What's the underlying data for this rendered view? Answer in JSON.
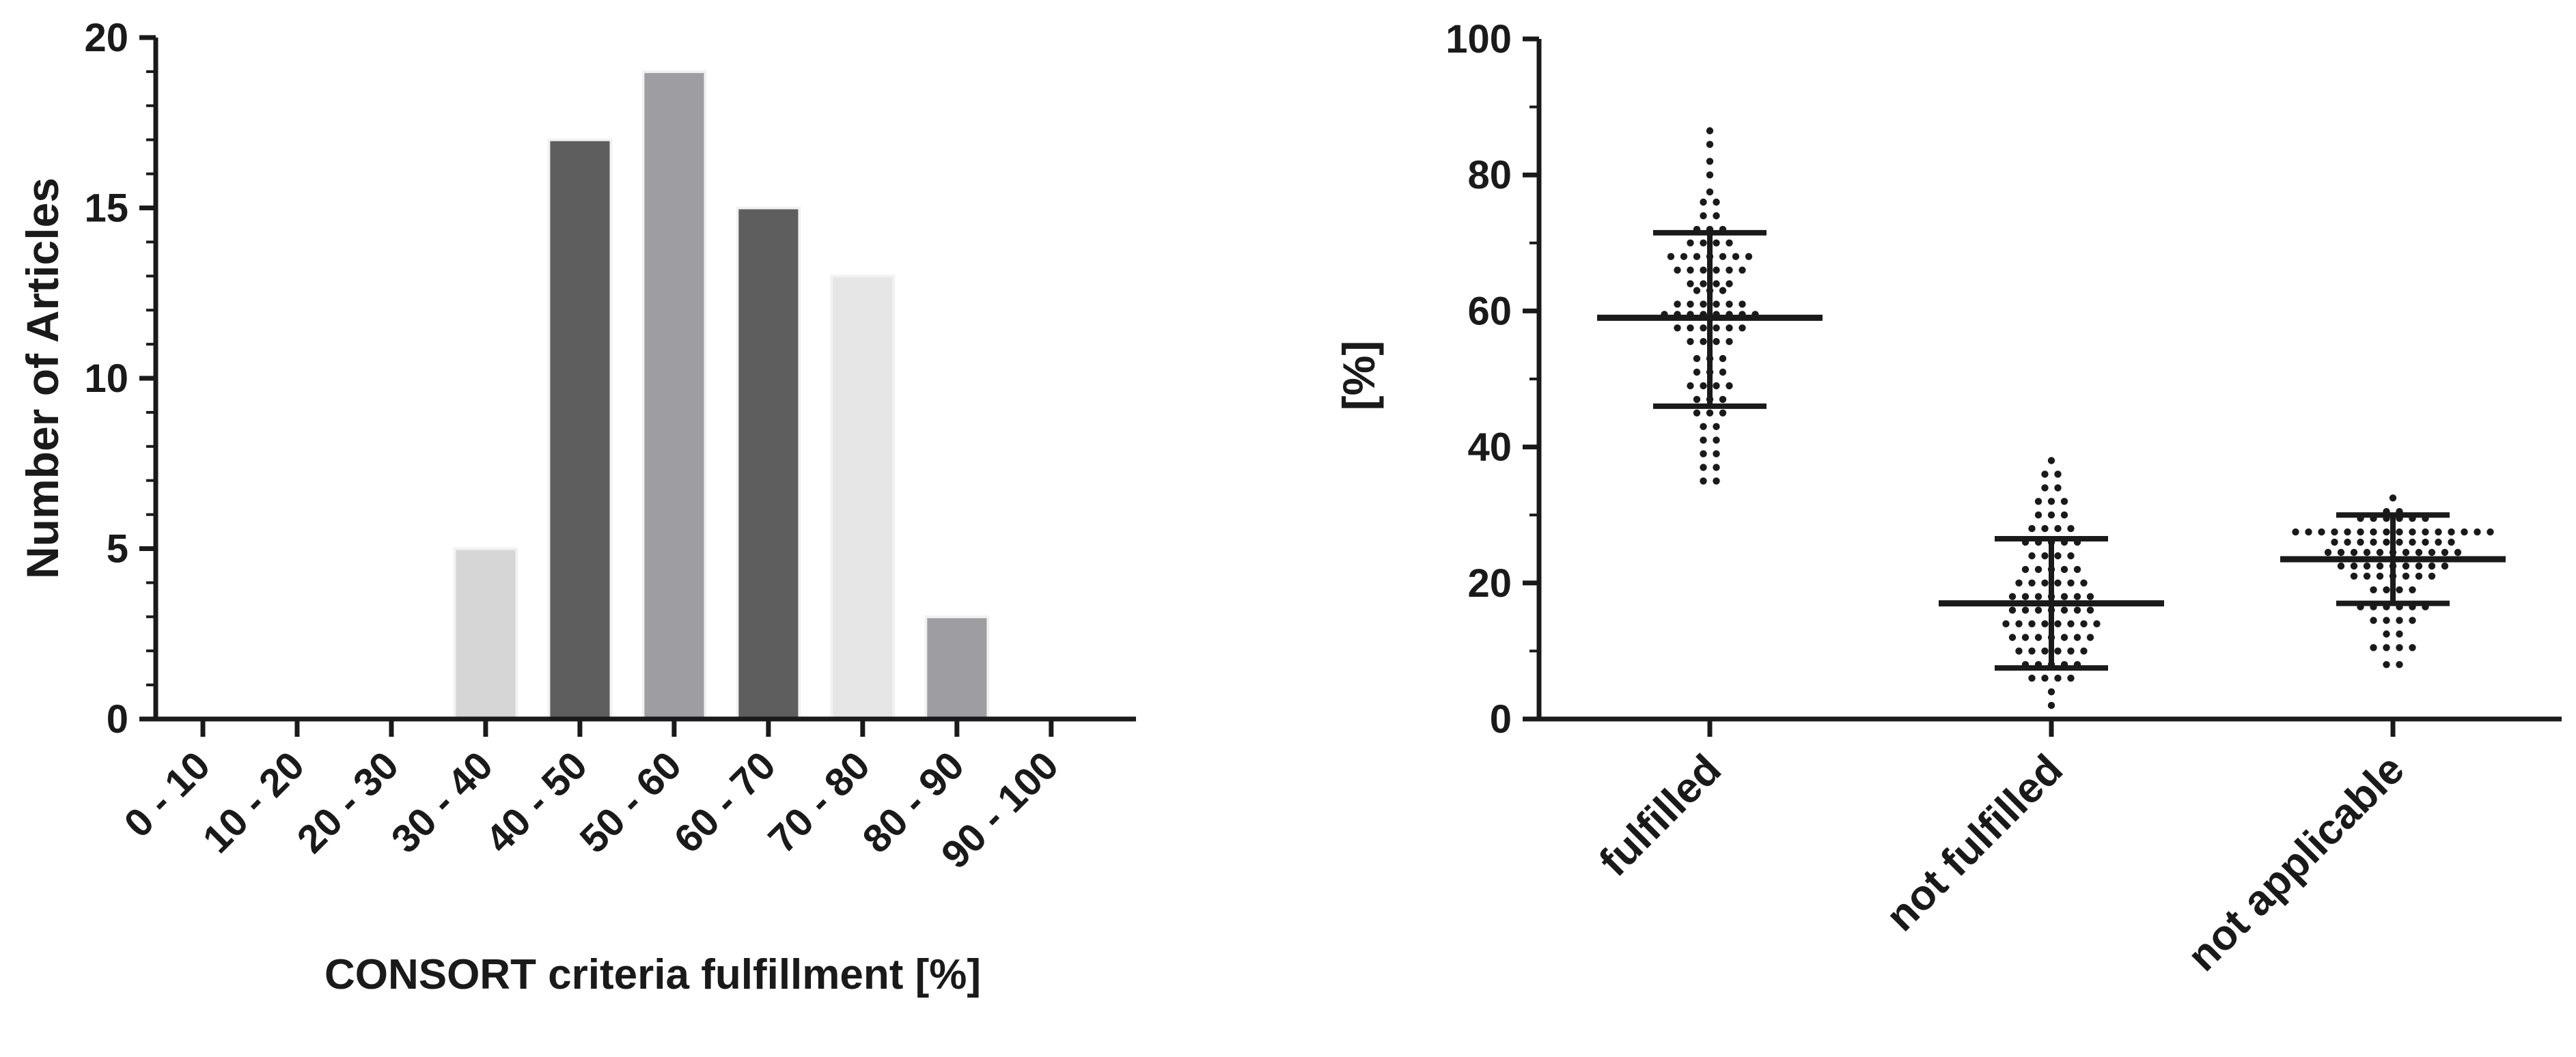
{
  "chart_data": [
    {
      "type": "bar",
      "title": "",
      "xlabel": "CONSORT criteria fulfillment [%]",
      "ylabel": "Number of Articles",
      "ylim": [
        0,
        20
      ],
      "yticks": [
        "0",
        "5",
        "10",
        "15",
        "20"
      ],
      "categories": [
        "0 - 10",
        "10 - 20",
        "20 - 30",
        "30 - 40",
        "40 - 50",
        "50 - 60",
        "60 - 70",
        "70 - 80",
        "80 - 90",
        "90 - 100"
      ],
      "values": [
        0,
        0,
        0,
        5,
        17,
        19,
        15,
        13,
        3,
        0
      ],
      "colors": [
        "#d6d6d6",
        "#d6d6d6",
        "#d6d6d6",
        "#d6d6d6",
        "#5e5e5e",
        "#9e9ea2",
        "#5e5e5e",
        "#e6e6e6",
        "#9e9ea2",
        "#d6d6d6"
      ],
      "grid": false
    },
    {
      "type": "scatter",
      "title": "",
      "xlabel": "",
      "ylabel": "[%]",
      "ylim": [
        0,
        100
      ],
      "yticks": [
        "0",
        "20",
        "40",
        "60",
        "80",
        "100"
      ],
      "categories": [
        "fulfilled",
        "not fulfilled",
        "not applicable"
      ],
      "summary": [
        {
          "name": "fulfilled",
          "mean": 59,
          "sd_low": 46,
          "sd_high": 71.5
        },
        {
          "name": "not fulfilled",
          "mean": 17,
          "sd_low": 7.5,
          "sd_high": 26.5
        },
        {
          "name": "not applicable",
          "mean": 23.5,
          "sd_low": 17,
          "sd_high": 30
        }
      ],
      "series": [
        {
          "name": "fulfilled",
          "values": [
            86.5,
            84.5,
            82,
            80,
            77.5,
            76,
            76,
            74,
            74,
            72,
            72,
            72,
            70,
            70,
            70,
            70,
            68,
            68,
            68,
            68,
            68,
            68,
            68,
            66,
            66,
            66,
            66,
            66,
            66,
            64,
            64,
            64,
            64,
            63,
            63,
            63,
            61,
            61,
            61,
            61,
            61,
            61,
            59.5,
            59.5,
            59.5,
            59.5,
            59.5,
            59.5,
            59.5,
            59.5,
            57.5,
            57.5,
            57.5,
            57.5,
            57.5,
            57.5,
            55.5,
            55.5,
            55.5,
            55.5,
            53,
            53,
            53,
            51,
            51,
            51,
            49,
            49,
            49,
            49,
            47,
            47,
            47,
            45,
            45,
            45,
            43,
            43,
            41,
            41,
            39,
            39,
            37,
            37,
            35,
            35
          ]
        },
        {
          "name": "not fulfilled",
          "values": [
            38,
            36,
            36,
            34,
            34,
            32,
            32,
            32,
            30,
            30,
            30,
            28,
            28,
            28,
            28,
            26,
            26,
            26,
            26,
            26,
            24,
            24,
            24,
            24,
            22,
            22,
            22,
            22,
            22,
            20,
            20,
            20,
            20,
            20,
            20,
            18,
            18,
            18,
            18,
            18,
            18,
            18,
            16,
            16,
            16,
            16,
            16,
            16,
            16,
            14,
            14,
            14,
            14,
            14,
            14,
            14,
            14,
            12,
            12,
            12,
            12,
            12,
            12,
            12,
            10,
            10,
            10,
            10,
            10,
            10,
            8,
            8,
            8,
            8,
            8,
            6,
            6,
            6,
            6,
            4,
            2
          ]
        },
        {
          "name": "not applicable",
          "values": [
            32.5,
            30.5,
            30.5,
            29.5,
            29.5,
            29.5,
            29.5,
            29.5,
            29.5,
            27.5,
            27.5,
            27.5,
            27.5,
            27.5,
            27.5,
            27.5,
            27.5,
            27.5,
            27.5,
            27.5,
            27.5,
            27.5,
            27.5,
            27.5,
            27.5,
            26,
            26,
            26,
            26,
            26,
            26,
            26,
            26,
            26,
            26,
            24.5,
            24.5,
            24.5,
            24.5,
            24.5,
            24.5,
            24.5,
            24.5,
            24.5,
            24.5,
            24.5,
            22.5,
            22.5,
            22.5,
            22.5,
            22.5,
            22.5,
            22.5,
            22.5,
            22.5,
            21,
            21,
            21,
            21,
            21,
            21,
            21,
            19,
            19,
            19,
            19,
            16.5,
            16.5,
            16.5,
            16.5,
            16.5,
            16.5,
            14.5,
            14.5,
            14.5,
            14.5,
            12.5,
            12.5,
            10.5,
            10.5,
            10.5,
            10.5,
            8,
            8
          ]
        }
      ],
      "grid": false
    }
  ]
}
